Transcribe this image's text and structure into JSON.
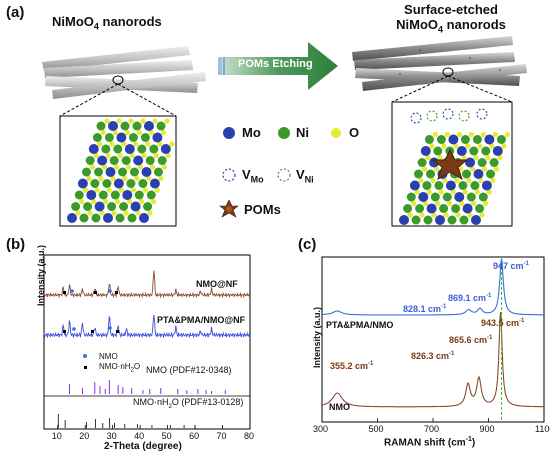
{
  "panel_a": {
    "tag": "(a)",
    "left_title_main": "NiMoO",
    "left_title_sub": "4",
    "left_title_tail": " nanorods",
    "arrow_label": "POMs Etching",
    "right_title_line1": "Surface-etched",
    "right_title_line2_main": "NiMoO",
    "right_title_line2_sub": "4",
    "right_title_line2_tail": " nanorods",
    "legend": {
      "mo": "Mo",
      "ni": "Ni",
      "o": "O",
      "v_mo_main": "V",
      "v_mo_sub": "Mo",
      "v_ni_main": "V",
      "v_ni_sub": "Ni",
      "poms": "POMs"
    },
    "colors": {
      "mo": "#2b3fb0",
      "ni": "#3c9a2a",
      "o": "#e4ea36",
      "arrow": "#3d8a47",
      "pom": "#7a3a18"
    }
  },
  "panel_b": {
    "tag": "(b)",
    "ylabel": "Intensity (a.u.)",
    "xlabel": "2-Theta (degree)",
    "xticks": [
      "10",
      "20",
      "30",
      "40",
      "50",
      "60",
      "70",
      "80"
    ],
    "trace_labels": [
      "NMO@NF",
      "PTA&PMA/NMO@NF"
    ],
    "legend_nmo": "NMO",
    "legend_hydrate_main": "NMO·nH",
    "legend_hydrate_sub": "2",
    "legend_hydrate_tail": "O",
    "ref1": "NMO (PDF#12-0348)",
    "ref2_main": "NMO·nH",
    "ref2_sub": "2",
    "ref2_tail": "O (PDF#13-0128)"
  },
  "panel_c": {
    "tag": "(c)",
    "ylabel": "Intensity (a.u.)",
    "xlabel_main": "RAMAN shift (cm",
    "xlabel_sup": "-1",
    "xlabel_tail": ")",
    "xticks": [
      "300",
      "500",
      "700",
      "900",
      "1100"
    ],
    "trace_labels": [
      "PTA&PMA/NMO",
      "NMO"
    ],
    "peaks_top": [
      "947 cm",
      "869.1 cm",
      "828.1 cm"
    ],
    "peaks_bottom": [
      "943.5 cm",
      "865.6 cm",
      "826.3 cm",
      "355.2 cm"
    ],
    "peak_sup": "-1"
  },
  "chart_data": [
    {
      "type": "line",
      "panel": "(b)",
      "xlabel": "2-Theta (degree)",
      "ylabel": "Intensity (a.u.)",
      "xlim": [
        5,
        80
      ],
      "series": [
        {
          "name": "NMO@NF",
          "color": "#8b4a2b"
        },
        {
          "name": "PTA&PMA/NMO@NF",
          "color": "#3b4fd8"
        }
      ],
      "reference_patterns": [
        "NMO (PDF#12-0348)",
        "NMO·nH2O (PDF#13-0128)"
      ]
    },
    {
      "type": "line",
      "panel": "(c)",
      "xlabel": "RAMAN shift (cm-1)",
      "ylabel": "Intensity (a.u.)",
      "xlim": [
        300,
        1100
      ],
      "series": [
        {
          "name": "PTA&PMA/NMO",
          "color": "#3b6fd8",
          "peaks": [
            828.1,
            869.1,
            947
          ]
        },
        {
          "name": "NMO",
          "color": "#8b4a2b",
          "peaks": [
            355.2,
            826.3,
            865.6,
            943.5
          ]
        }
      ]
    }
  ]
}
